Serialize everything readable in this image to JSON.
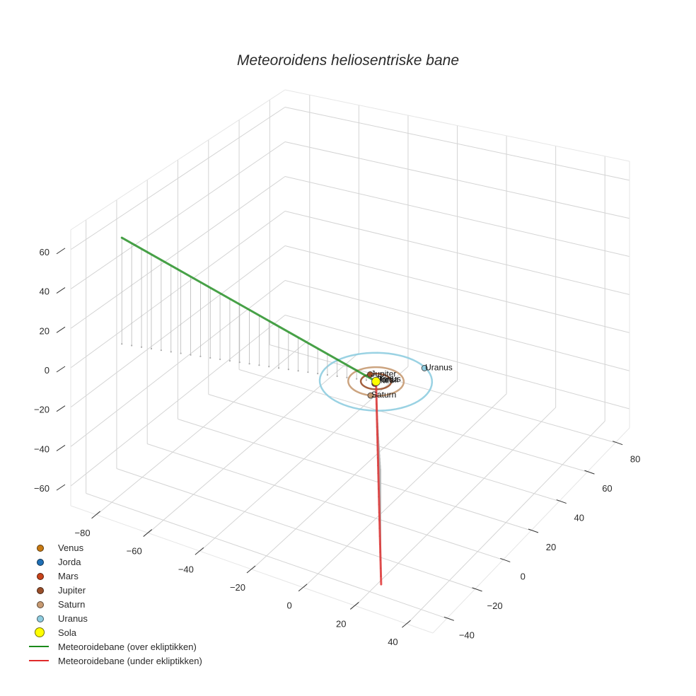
{
  "title": "Meteoroidens heliosentriske bane",
  "legend": {
    "items": [
      {
        "label": "Venus",
        "type": "marker",
        "color": "#c87a12"
      },
      {
        "label": "Jorda",
        "type": "marker",
        "color": "#1f6fb5"
      },
      {
        "label": "Mars",
        "type": "marker",
        "color": "#c8431a"
      },
      {
        "label": "Jupiter",
        "type": "marker",
        "color": "#9a4f2a"
      },
      {
        "label": "Saturn",
        "type": "marker",
        "color": "#c79a72"
      },
      {
        "label": "Uranus",
        "type": "marker",
        "color": "#8fcde0"
      },
      {
        "label": "Sola",
        "type": "marker-large",
        "color": "#ffff00"
      },
      {
        "label": "Meteoroidebane (over ekliptikken)",
        "type": "line",
        "color": "#1a8a1a"
      },
      {
        "label": "Meteoroidebane (under ekliptikken)",
        "type": "line",
        "color": "#e02a2a"
      }
    ]
  },
  "axes": {
    "x_ticks": [
      "−80",
      "−60",
      "−40",
      "−20",
      "0",
      "20",
      "40"
    ],
    "y_ticks": [
      "−40",
      "−20",
      "0",
      "20",
      "40",
      "60",
      "80"
    ],
    "z_ticks": [
      "60",
      "40",
      "20",
      "0",
      "−20",
      "−40",
      "−60"
    ]
  },
  "planet_labels": [
    "Venus",
    "Jorda",
    "Mars",
    "Jupiter",
    "Saturn",
    "Uranus"
  ],
  "chart_data": {
    "type": "scatter3d",
    "title": "Meteoroidens heliosentriske bane",
    "xlabel": "",
    "ylabel": "",
    "zlabel": "",
    "xlim": [
      -90,
      50
    ],
    "ylim": [
      -50,
      90
    ],
    "zlim": [
      -70,
      70
    ],
    "grid": true,
    "legend_position": "bottom-left",
    "x_tick_labels": [
      -80,
      -60,
      -40,
      -20,
      0,
      20,
      40
    ],
    "y_tick_labels": [
      -40,
      -20,
      0,
      20,
      40,
      60,
      80
    ],
    "z_tick_labels": [
      -60,
      -40,
      -20,
      0,
      20,
      40,
      60
    ],
    "series": [
      {
        "name": "Venus",
        "kind": "marker",
        "color": "#c87a12",
        "x": 0.5,
        "y": -0.5,
        "z": 0
      },
      {
        "name": "Jorda",
        "kind": "marker",
        "color": "#1f6fb5",
        "x": 0.6,
        "y": -0.8,
        "z": 0
      },
      {
        "name": "Mars",
        "kind": "marker",
        "color": "#c8431a",
        "x": 0.3,
        "y": -1.5,
        "z": 0
      },
      {
        "name": "Jupiter",
        "kind": "marker",
        "color": "#9a4f2a",
        "x": -4,
        "y": 3,
        "z": 0,
        "orbit_radius": 5.2
      },
      {
        "name": "Saturn",
        "kind": "marker",
        "color": "#c79a72",
        "x": 3,
        "y": -9,
        "z": 0,
        "orbit_radius": 9.5
      },
      {
        "name": "Uranus",
        "kind": "marker",
        "color": "#8fcde0",
        "x": 10,
        "y": 16,
        "z": 0,
        "orbit_radius": 19.2
      },
      {
        "name": "Sola",
        "kind": "marker-large",
        "color": "#ffff00",
        "x": 0,
        "y": 0,
        "z": 0
      },
      {
        "name": "Meteoroidebane (over ekliptikken)",
        "kind": "line",
        "color": "#1a8a1a",
        "x": [
          -85,
          0
        ],
        "y": [
          -25,
          0
        ],
        "z": [
          55,
          0
        ]
      },
      {
        "name": "Meteoroidebane (under ekliptikken)",
        "kind": "line",
        "color": "#e02a2a",
        "x": [
          0,
          30
        ],
        "y": [
          0,
          -50
        ],
        "z": [
          0,
          -55
        ]
      }
    ]
  }
}
